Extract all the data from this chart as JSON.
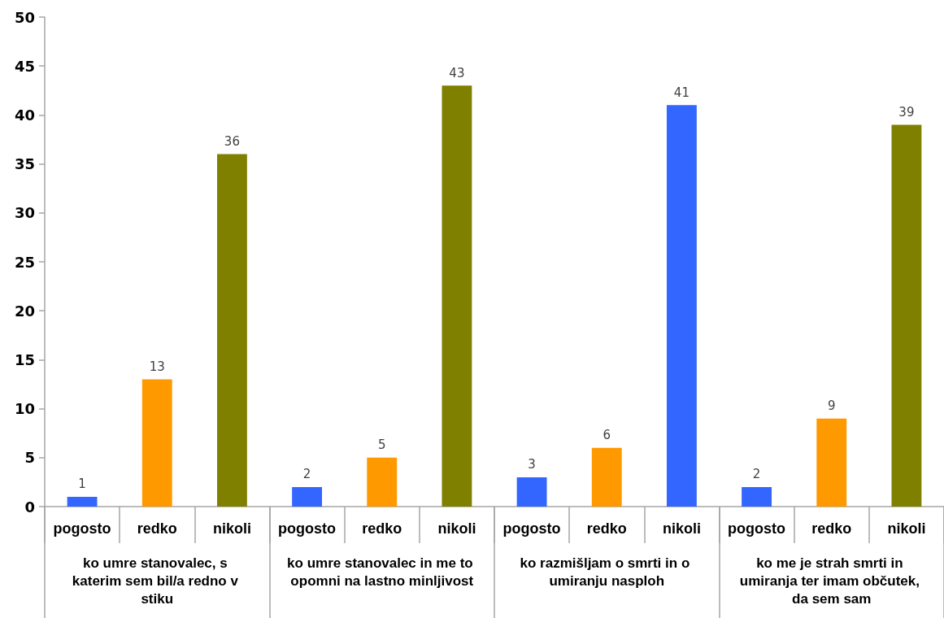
{
  "chart_data": {
    "type": "bar",
    "categories": [
      "pogosto",
      "redko",
      "nikoli",
      "pogosto",
      "redko",
      "nikoli",
      "pogosto",
      "redko",
      "nikoli",
      "pogosto",
      "redko",
      "nikoli"
    ],
    "values": [
      1,
      13,
      36,
      2,
      5,
      43,
      3,
      6,
      41,
      2,
      9,
      39
    ],
    "colors": [
      "#3366ff",
      "#ff9900",
      "#808000",
      "#3366ff",
      "#ff9900",
      "#808000",
      "#3366ff",
      "#ff9900",
      "#3366ff",
      "#3366ff",
      "#ff9900",
      "#808000"
    ],
    "ylim": [
      0,
      50
    ],
    "yticks": [
      0,
      5,
      10,
      15,
      20,
      25,
      30,
      35,
      40,
      45,
      50
    ],
    "data_labels": true,
    "annotations": [
      "ko umre stanovalec, s katerim sem bil/a redno v stiku",
      "ko umre stanovalec in me to opomni na lastno minljivost",
      "ko razmišljam o smrti in o umiranju nasploh",
      "ko me je strah smrti in umiranja ter imam občutek, da sem sam"
    ]
  }
}
